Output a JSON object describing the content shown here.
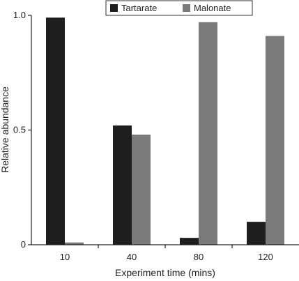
{
  "chart_data": {
    "type": "bar",
    "categories": [
      "10",
      "40",
      "80",
      "120"
    ],
    "series": [
      {
        "name": "Tartarate",
        "values": [
          0.99,
          0.52,
          0.03,
          0.1
        ],
        "color": "#1e1e1e"
      },
      {
        "name": "Malonate",
        "values": [
          0.01,
          0.48,
          0.97,
          0.91
        ],
        "color": "#7a7a7a"
      }
    ],
    "xlabel": "Experiment time (mins)",
    "ylabel": "Relative abundance",
    "ylim": [
      0,
      1.0
    ],
    "yticks": [
      {
        "value": 0,
        "label": "0"
      },
      {
        "value": 0.5,
        "label": "0.5"
      },
      {
        "value": 1.0,
        "label": "1.0"
      }
    ],
    "grid": false,
    "legend_position": "top-right"
  }
}
